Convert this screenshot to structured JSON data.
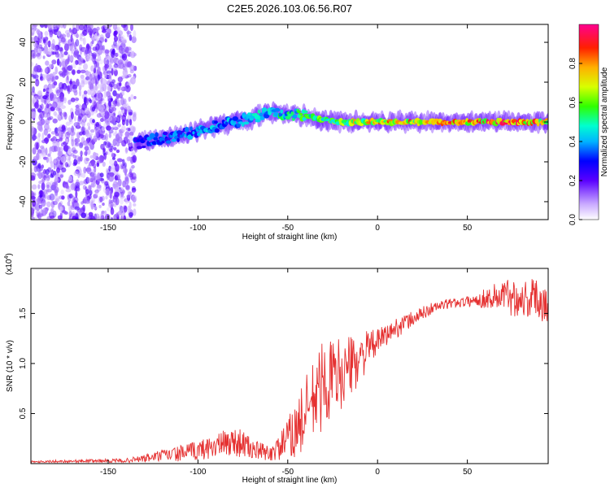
{
  "figure": {
    "title": "C2E5.2026.103.06.56.R07"
  },
  "chart_data": [
    {
      "type": "heatmap",
      "title": "C2E5.2026.103.06.56.R07",
      "xlabel": "Height of straight line (km)",
      "ylabel": "Frequency (Hz)",
      "xlim": [
        -193,
        95
      ],
      "ylim": [
        -49,
        49
      ],
      "x_ticks": [
        -150,
        -100,
        -50,
        0,
        50
      ],
      "y_ticks": [
        -40,
        -20,
        0,
        20,
        40
      ],
      "grid": false,
      "colorbar": {
        "label": "Normalized spectral amplitude",
        "range": [
          0,
          1
        ],
        "ticks": [
          0.0,
          0.2,
          0.4,
          0.6,
          0.8
        ],
        "tick_labels": [
          "0.0",
          "0.2",
          "0.4",
          "0.6",
          "0.8"
        ],
        "colormap": "rainbow"
      },
      "ridge": {
        "x": [
          -135,
          -120,
          -110,
          -100,
          -90,
          -80,
          -70,
          -60,
          -50,
          -40,
          -30,
          -20,
          -10,
          0,
          25,
          50,
          75,
          95
        ],
        "frequency": [
          -11,
          -8,
          -7,
          -4,
          -2,
          0,
          2,
          5,
          4,
          3,
          1,
          0,
          0,
          0,
          0,
          0,
          0,
          0
        ],
        "amplitude": [
          0.35,
          0.35,
          0.4,
          0.4,
          0.45,
          0.45,
          0.45,
          0.5,
          0.55,
          0.6,
          0.65,
          0.7,
          0.75,
          0.8,
          0.85,
          0.9,
          0.9,
          0.85
        ]
      },
      "noise_region": {
        "x_range": [
          -193,
          -135
        ],
        "amplitude": 0.15
      }
    },
    {
      "type": "line",
      "xlabel": "Height of straight line (km)",
      "ylabel": "SNR (10 * v/v)",
      "y_multiplier_label": "(x10",
      "y_multiplier_exp": "4",
      "y_multiplier_close": ")",
      "xlim": [
        -193,
        95
      ],
      "ylim": [
        0,
        1.95
      ],
      "x_ticks": [
        -150,
        -100,
        -50,
        0,
        50
      ],
      "y_ticks": [
        0.5,
        1.0,
        1.5
      ],
      "y_tick_labels": [
        "0.5",
        "1.0",
        "1.5"
      ],
      "grid": false,
      "series": [
        {
          "color": "#e53030",
          "x": [
            -193,
            -140,
            -130,
            -120,
            -110,
            -100,
            -90,
            -80,
            -75,
            -70,
            -60,
            -55,
            -50,
            -45,
            -40,
            -35,
            -30,
            -25,
            -20,
            -10,
            -5,
            0,
            10,
            20,
            30,
            40,
            50,
            60,
            70,
            80,
            90,
            95
          ],
          "y": [
            0.02,
            0.03,
            0.05,
            0.08,
            0.1,
            0.13,
            0.18,
            0.22,
            0.2,
            0.14,
            0.1,
            0.15,
            0.25,
            0.35,
            0.5,
            0.65,
            0.8,
            0.85,
            0.9,
            1.05,
            1.15,
            1.22,
            1.35,
            1.45,
            1.55,
            1.6,
            1.62,
            1.65,
            1.68,
            1.65,
            1.65,
            1.6
          ],
          "noise": [
            0.01,
            0.02,
            0.04,
            0.06,
            0.08,
            0.1,
            0.12,
            0.15,
            0.14,
            0.1,
            0.08,
            0.12,
            0.2,
            0.3,
            0.38,
            0.42,
            0.45,
            0.42,
            0.35,
            0.25,
            0.18,
            0.12,
            0.1,
            0.08,
            0.06,
            0.05,
            0.05,
            0.1,
            0.18,
            0.2,
            0.22,
            0.2
          ]
        }
      ]
    }
  ]
}
